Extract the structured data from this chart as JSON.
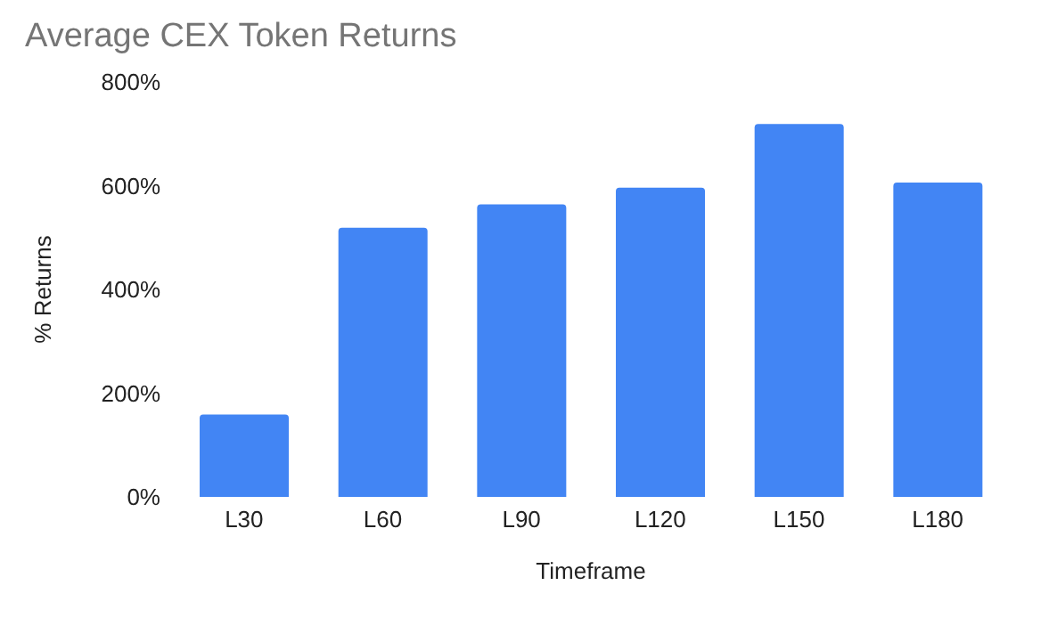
{
  "chart_data": {
    "type": "bar",
    "title": "Average CEX Token Returns",
    "xlabel": "Timeframe",
    "ylabel": "% Returns",
    "categories": [
      "L30",
      "L60",
      "L90",
      "L120",
      "L150",
      "L180"
    ],
    "values": [
      159,
      519,
      564,
      596,
      719,
      606
    ],
    "color": "#4285f4",
    "ylim": [
      0,
      800
    ],
    "yticks": [
      {
        "value": 0,
        "label": "0%"
      },
      {
        "value": 200,
        "label": "200%"
      },
      {
        "value": 400,
        "label": "400%"
      },
      {
        "value": 600,
        "label": "600%"
      },
      {
        "value": 800,
        "label": "800%"
      }
    ],
    "grid": false,
    "legend": false
  }
}
